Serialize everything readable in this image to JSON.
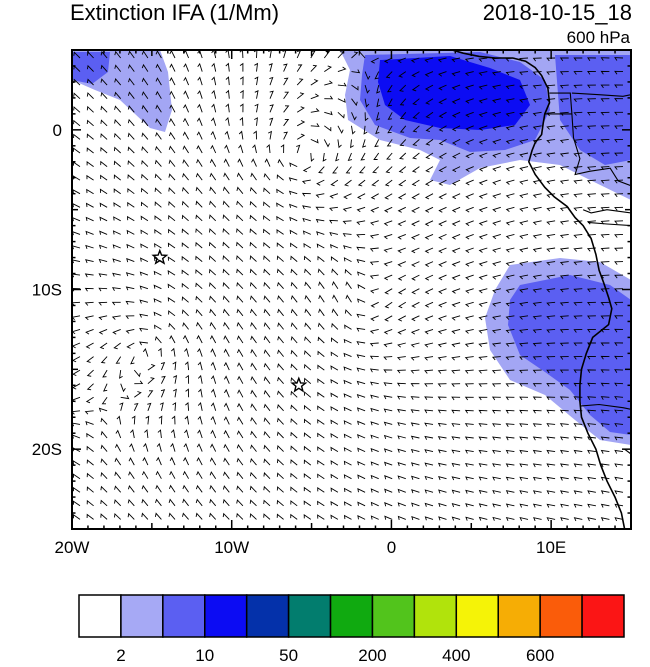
{
  "header": {
    "title": "Extinction IFA (1/Mm)",
    "datetime": "2018-10-15_18",
    "level": "600 hPa"
  },
  "map": {
    "lon_range": [
      -20,
      15
    ],
    "lat_range": [
      -25,
      5
    ],
    "x_ticks": [
      {
        "lon": -20,
        "label": "20W"
      },
      {
        "lon": -10,
        "label": "10W"
      },
      {
        "lon": 0,
        "label": "0"
      },
      {
        "lon": 10,
        "label": "10E"
      }
    ],
    "y_ticks": [
      {
        "lat": 0,
        "label": "0"
      },
      {
        "lat": -10,
        "label": "10S"
      },
      {
        "lat": -20,
        "label": "20S"
      }
    ],
    "markers": [
      {
        "name": "star-marker",
        "lon": -14.5,
        "lat": -8
      },
      {
        "name": "star-marker",
        "lon": -5.8,
        "lat": -16
      }
    ],
    "coastline": [
      [
        3.8,
        5
      ],
      [
        4.5,
        4.8
      ],
      [
        5.5,
        4.6
      ],
      [
        6.5,
        4.5
      ],
      [
        7.6,
        4.5
      ],
      [
        8.4,
        4.3
      ],
      [
        9.0,
        3.9
      ],
      [
        9.4,
        3.4
      ],
      [
        9.8,
        2.6
      ],
      [
        9.9,
        1.7
      ],
      [
        9.6,
        1.0
      ],
      [
        9.5,
        0.4
      ],
      [
        9.4,
        -0.3
      ],
      [
        9.0,
        -0.8
      ],
      [
        8.8,
        -1.3
      ],
      [
        8.6,
        -2.0
      ],
      [
        9.0,
        -2.8
      ],
      [
        9.6,
        -3.6
      ],
      [
        10.2,
        -4.2
      ],
      [
        11.0,
        -4.8
      ],
      [
        11.5,
        -5.5
      ],
      [
        12.0,
        -6.0
      ],
      [
        12.5,
        -6.8
      ],
      [
        12.8,
        -7.8
      ],
      [
        13.0,
        -8.8
      ],
      [
        13.3,
        -9.6
      ],
      [
        13.6,
        -10.5
      ],
      [
        13.8,
        -11.2
      ],
      [
        13.6,
        -12.2
      ],
      [
        12.6,
        -13.0
      ],
      [
        12.2,
        -14.0
      ],
      [
        11.9,
        -15.0
      ],
      [
        11.8,
        -16.0
      ],
      [
        11.8,
        -17.0
      ],
      [
        11.9,
        -18.0
      ],
      [
        12.3,
        -19.0
      ],
      [
        12.8,
        -20.0
      ],
      [
        13.1,
        -21.0
      ],
      [
        13.5,
        -22.0
      ],
      [
        14.0,
        -23.0
      ],
      [
        14.4,
        -24.0
      ],
      [
        14.6,
        -25.0
      ]
    ],
    "borders": [
      [
        [
          9.9,
          2.3
        ],
        [
          11.2,
          2.3
        ],
        [
          11.3,
          1.0
        ],
        [
          9.6,
          1.0
        ]
      ],
      [
        [
          11.3,
          2.3
        ],
        [
          13.0,
          2.2
        ],
        [
          14.5,
          2.1
        ],
        [
          15,
          2.2
        ]
      ],
      [
        [
          11.3,
          1.0
        ],
        [
          11.4,
          -0.5
        ],
        [
          11.8,
          -1.8
        ],
        [
          11.5,
          -2.8
        ],
        [
          12.4,
          -2.6
        ],
        [
          13.7,
          -2.4
        ],
        [
          14.2,
          -3.2
        ],
        [
          15,
          -3.5
        ]
      ],
      [
        [
          12.0,
          -5.0
        ],
        [
          12.5,
          -5.2
        ],
        [
          13.5,
          -5.0
        ],
        [
          15,
          -5.2
        ]
      ],
      [
        [
          12.3,
          -5.8
        ],
        [
          13.5,
          -5.9
        ],
        [
          15,
          -6.0
        ]
      ],
      [
        [
          11.8,
          -17.3
        ],
        [
          13.0,
          -17.2
        ],
        [
          14.5,
          -17.4
        ],
        [
          15,
          -17.5
        ]
      ],
      [
        [
          14.6,
          -20.0
        ],
        [
          15,
          -20.3
        ]
      ]
    ],
    "aerosol_levels": [
      "2-5",
      "5-10"
    ],
    "colors": {
      "level_2_5": "#a3a6f4",
      "level_5_10": "#5b5ff2",
      "level_10_20": "#0c0cf3"
    }
  },
  "colorbar": {
    "colors": [
      "#ffffff",
      "#a6a9f5",
      "#5b5ff2",
      "#0c0cf3",
      "#0431aa",
      "#027d6e",
      "#10aa10",
      "#52c41c",
      "#b1e30c",
      "#f5f307",
      "#f6ad05",
      "#fa5c0a",
      "#fb1515"
    ],
    "labels": [
      {
        "index": 1,
        "text": "2"
      },
      {
        "index": 3,
        "text": "10"
      },
      {
        "index": 5,
        "text": "50"
      },
      {
        "index": 7,
        "text": "200"
      },
      {
        "index": 9,
        "text": "400"
      },
      {
        "index": 11,
        "text": "600"
      }
    ]
  }
}
